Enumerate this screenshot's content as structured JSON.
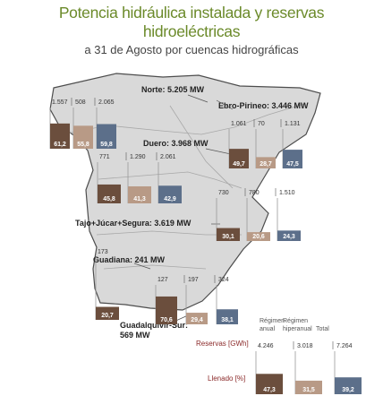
{
  "header": {
    "title_line1": "Potencia hidráulica instalada y reservas",
    "title_line2": "hidroeléctricas",
    "subtitle": "a 31 de Agosto por cuencas hidrográficas"
  },
  "colors": {
    "title": "#6b8a2a",
    "map_fill": "#d9d9d9",
    "map_stroke": "#4d4d4d",
    "bar_annual": "#6b4e3d",
    "bar_hyper": "#b89a86",
    "bar_total": "#5c6f8a",
    "fill_label": "#ffffff",
    "leader_line": "#555555",
    "capacity_frame": "#cccccc"
  },
  "legend": {
    "col_annual": "Régimen anual",
    "col_annual_l1": "Régimen",
    "col_annual_l2": "anual",
    "col_hyper_l1": "Régimen",
    "col_hyper_l2": "hiperanual",
    "col_total": "Total",
    "reserves_label": "Reservas [GWh]",
    "fill_label": "Llenado [%]"
  },
  "chart_data": {
    "type": "bar",
    "title": "Potencia hidráulica instalada y reservas hidroeléctricas",
    "subtitle": "a 31 de Agosto por cuencas hidrográficas",
    "units": {
      "reserves": "GWh",
      "fill": "%",
      "power": "MW"
    },
    "series_names": [
      "Régimen anual",
      "Régimen hiperanual",
      "Total"
    ],
    "basins": [
      {
        "label": "Norte: 5.205 MW",
        "reserves": [
          "1.557",
          "508",
          "2.065"
        ],
        "fill": [
          "61,2",
          "55,8",
          "59,8"
        ],
        "fill_values": [
          61.2,
          55.8,
          59.8
        ]
      },
      {
        "label": "Ebro-Pirineo: 3.446 MW",
        "reserves": [
          "1.061",
          "70",
          "1.131"
        ],
        "fill": [
          "49,7",
          "28,7",
          "47,5"
        ],
        "fill_values": [
          49.7,
          28.7,
          47.5
        ]
      },
      {
        "label": "Duero: 3.968 MW",
        "reserves": [
          "771",
          "1.290",
          "2.061"
        ],
        "fill": [
          "45,8",
          "41,3",
          "42,9"
        ],
        "fill_values": [
          45.8,
          41.3,
          42.9
        ]
      },
      {
        "label": "Tajo+Júcar+Segura: 3.619 MW",
        "reserves": [
          "730",
          "780",
          "1.510"
        ],
        "fill": [
          "30,1",
          "20,6",
          "24,3"
        ],
        "fill_values": [
          30.1,
          20.6,
          24.3
        ]
      },
      {
        "label": "Guadiana: 241 MW",
        "reserves": [
          "173"
        ],
        "fill": [
          "20,7"
        ],
        "fill_values": [
          20.7
        ]
      },
      {
        "label": "Guadalquivir-Sur: 569 MW",
        "label_l1": "Guadalquivir-Sur:",
        "label_l2": "569 MW",
        "reserves": [
          "127",
          "197",
          "324"
        ],
        "fill": [
          "70,6",
          "29,4",
          "38,1"
        ],
        "fill_values": [
          70.6,
          29.4,
          38.1
        ]
      },
      {
        "label": "Total",
        "reserves": [
          "4.246",
          "3.018",
          "7.264"
        ],
        "fill": [
          "47,3",
          "31,5",
          "39,2"
        ],
        "fill_values": [
          47.3,
          31.5,
          39.2
        ]
      }
    ]
  }
}
